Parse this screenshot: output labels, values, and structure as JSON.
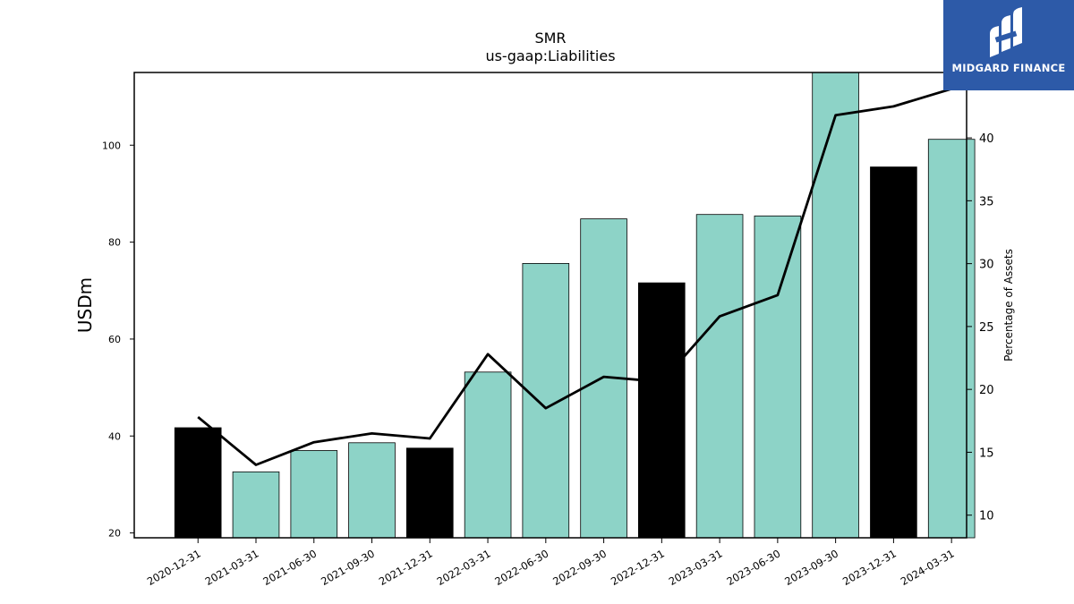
{
  "logo": {
    "brand": "MIDGARD FINANCE"
  },
  "colors": {
    "normal_bar": "#8dd3c7",
    "year_end_bar": "#000000",
    "line": "#000000"
  },
  "chart_data": {
    "type": "bar",
    "title": "SMR",
    "subtitle": "us-gaap:Liabilities",
    "ylabel": "USDm",
    "y2label": "Percentage of Assets",
    "categories": [
      "2020-12-31",
      "2021-03-31",
      "2021-06-30",
      "2021-09-30",
      "2021-12-31",
      "2022-03-31",
      "2022-06-30",
      "2022-09-30",
      "2022-12-31",
      "2023-03-31",
      "2023-06-30",
      "2023-09-30",
      "2023-12-31",
      "2024-03-31"
    ],
    "values": [
      41.7,
      32.6,
      37.0,
      38.6,
      37.5,
      53.2,
      75.6,
      84.8,
      71.6,
      85.7,
      85.4,
      115.0,
      95.5,
      101.2
    ],
    "highlight": [
      true,
      false,
      false,
      false,
      true,
      false,
      false,
      false,
      true,
      false,
      false,
      false,
      true,
      false
    ],
    "pct_of_assets": [
      17.8,
      14.0,
      15.8,
      16.5,
      16.1,
      22.8,
      18.5,
      21.0,
      20.6,
      25.8,
      27.5,
      41.8,
      42.5,
      43.9
    ],
    "ylim": [
      19,
      115
    ],
    "y2lim": [
      8.2,
      45.2
    ],
    "yticks": [
      "20",
      "40",
      "60",
      "80",
      "100"
    ],
    "y2ticks": [
      "10",
      "15",
      "20",
      "25",
      "30",
      "35",
      "40"
    ],
    "grid": false
  }
}
